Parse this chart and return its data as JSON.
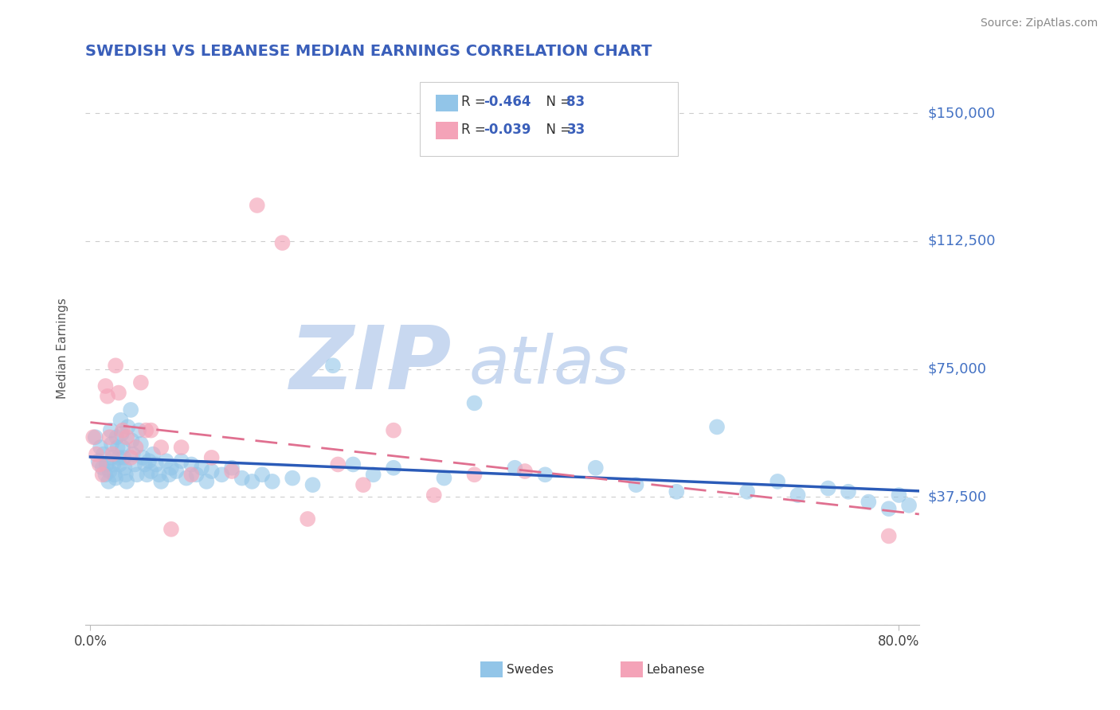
{
  "title": "SWEDISH VS LEBANESE MEDIAN EARNINGS CORRELATION CHART",
  "source": "Source: ZipAtlas.com",
  "ylabel": "Median Earnings",
  "ytick_vals": [
    0,
    37500,
    75000,
    112500,
    150000
  ],
  "ytick_labels": [
    "",
    "$37,500",
    "$75,000",
    "$112,500",
    "$150,000"
  ],
  "ylim": [
    0,
    162000
  ],
  "xlim": [
    -0.005,
    0.82
  ],
  "xtick_vals": [
    0.0,
    0.8
  ],
  "xtick_labels": [
    "0.0%",
    "80.0%"
  ],
  "legend_swedes_R": "-0.464",
  "legend_swedes_N": "83",
  "legend_lebanese_R": "-0.039",
  "legend_lebanese_N": "33",
  "color_swedes": "#92C5E8",
  "color_lebanese": "#F4A3B8",
  "color_title": "#3A5FBA",
  "color_ytick_labels": "#4472C4",
  "color_regression_swedes": "#2B5BB8",
  "color_regression_lebanese": "#E07090",
  "color_grid": "#CCCCCC",
  "watermark_zip": "ZIP",
  "watermark_atlas": "atlas",
  "watermark_color": "#C8D8F0",
  "background_color": "#FFFFFF",
  "swedes_x": [
    0.005,
    0.008,
    0.01,
    0.012,
    0.013,
    0.015,
    0.016,
    0.018,
    0.019,
    0.02,
    0.021,
    0.022,
    0.023,
    0.024,
    0.025,
    0.026,
    0.027,
    0.028,
    0.029,
    0.03,
    0.031,
    0.032,
    0.033,
    0.034,
    0.035,
    0.036,
    0.037,
    0.04,
    0.041,
    0.042,
    0.044,
    0.046,
    0.048,
    0.05,
    0.052,
    0.054,
    0.056,
    0.058,
    0.06,
    0.062,
    0.065,
    0.068,
    0.07,
    0.075,
    0.078,
    0.08,
    0.085,
    0.09,
    0.095,
    0.1,
    0.105,
    0.11,
    0.115,
    0.12,
    0.13,
    0.14,
    0.15,
    0.16,
    0.17,
    0.18,
    0.2,
    0.22,
    0.24,
    0.26,
    0.28,
    0.3,
    0.35,
    0.38,
    0.42,
    0.45,
    0.5,
    0.54,
    0.58,
    0.62,
    0.65,
    0.68,
    0.7,
    0.73,
    0.75,
    0.77,
    0.79,
    0.8,
    0.81
  ],
  "swedes_y": [
    55000,
    48000,
    52000,
    46000,
    50000,
    44000,
    47000,
    42000,
    45000,
    57000,
    53000,
    49000,
    47000,
    44000,
    43000,
    55000,
    52000,
    49000,
    47000,
    60000,
    56000,
    52000,
    49000,
    46000,
    44000,
    42000,
    58000,
    63000,
    54000,
    50000,
    47000,
    44000,
    57000,
    53000,
    49000,
    47000,
    44000,
    48000,
    45000,
    50000,
    47000,
    44000,
    42000,
    48000,
    44000,
    46000,
    45000,
    48000,
    43000,
    47000,
    44000,
    46000,
    42000,
    45000,
    44000,
    46000,
    43000,
    42000,
    44000,
    42000,
    43000,
    41000,
    76000,
    47000,
    44000,
    46000,
    43000,
    65000,
    46000,
    44000,
    46000,
    41000,
    39000,
    58000,
    39000,
    42000,
    38000,
    40000,
    39000,
    36000,
    34000,
    38000,
    35000
  ],
  "lebanese_x": [
    0.003,
    0.006,
    0.009,
    0.012,
    0.015,
    0.017,
    0.019,
    0.022,
    0.025,
    0.028,
    0.032,
    0.036,
    0.04,
    0.045,
    0.05,
    0.055,
    0.06,
    0.07,
    0.08,
    0.09,
    0.1,
    0.12,
    0.14,
    0.165,
    0.19,
    0.215,
    0.245,
    0.27,
    0.3,
    0.34,
    0.38,
    0.43,
    0.79
  ],
  "lebanese_y": [
    55000,
    50000,
    47000,
    44000,
    70000,
    67000,
    55000,
    50000,
    76000,
    68000,
    57000,
    55000,
    49000,
    52000,
    71000,
    57000,
    57000,
    52000,
    28000,
    52000,
    44000,
    49000,
    45000,
    123000,
    112000,
    31000,
    47000,
    41000,
    57000,
    38000,
    44000,
    45000,
    26000
  ]
}
